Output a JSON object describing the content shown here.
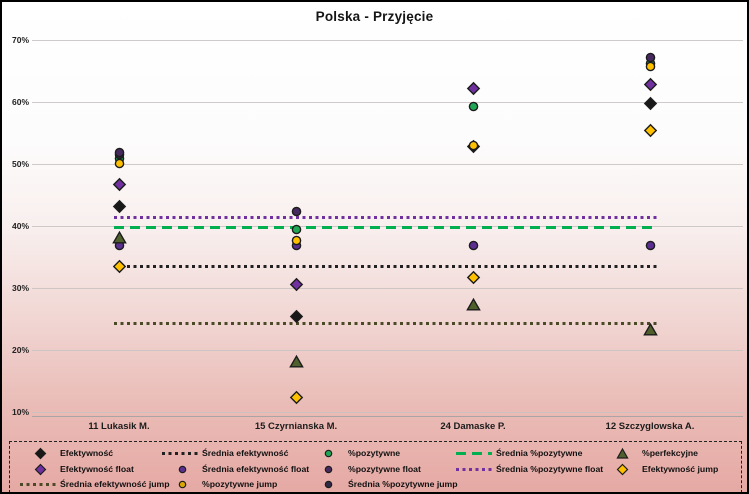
{
  "title": "Polska - Przyjęcie",
  "y_axis": {
    "ticks": [
      "70%",
      "60%",
      "50%",
      "40%",
      "30%",
      "20%",
      "10%"
    ],
    "min": 10,
    "max": 70,
    "step": 10,
    "grid": true
  },
  "categories": [
    "11 Lukasik M.",
    "15 Czyrnianska M.",
    "24 Damaske P.",
    "12 Szczyglowska A."
  ],
  "chart_data": {
    "type": "scatter",
    "title": "Polska - Przyjęcie",
    "xlabel": "",
    "ylabel": "",
    "ylim": [
      10,
      70
    ],
    "categories": [
      "11 Lukasik M.",
      "15 Czyrnianska M.",
      "24 Damaske P.",
      "12 Szczyglowska A."
    ],
    "series": [
      {
        "name": "%pozytywne",
        "marker": "circle",
        "color": "#1fa755",
        "values": [
          50.9,
          39.4,
          59.2,
          66.2
        ]
      },
      {
        "name": "Średnia %pozytywne jump",
        "marker": "circle",
        "color": "#2f2847",
        "values": [
          51.6,
          null,
          null,
          null
        ]
      },
      {
        "name": "%pozytywne float",
        "marker": "circle",
        "color": "#45295f",
        "values": [
          51.8,
          42.3,
          null,
          67.1
        ]
      },
      {
        "name": "Średnia efektywność float",
        "marker": "circle",
        "color": "#5b2f91",
        "values": [
          36.9,
          36.9,
          36.9,
          36.9
        ]
      },
      {
        "name": "Efektywność float",
        "marker": "diamond",
        "color": "#7030a0",
        "values": [
          46.7,
          30.6,
          62.1,
          62.8
        ]
      },
      {
        "name": "Efektywność",
        "marker": "diamond",
        "color": "#181818",
        "values": [
          43.1,
          25.4,
          52.8,
          59.7
        ]
      },
      {
        "name": "Efektywność jump",
        "marker": "diamond",
        "color": "#ffc000",
        "values": [
          33.5,
          12.4,
          31.7,
          55.4
        ]
      },
      {
        "name": "%pozytywne jump",
        "marker": "circle",
        "color": "#ffc000",
        "values": [
          50.1,
          37.7,
          53.0,
          65.8
        ]
      },
      {
        "name": "%perfekcyjne",
        "marker": "triangle",
        "color": "#50602c",
        "values": [
          38.1,
          18.1,
          27.3,
          23.3
        ]
      }
    ],
    "average_lines": [
      {
        "name": "Średnia %pozytywne float",
        "style": "dotted",
        "color": "#7030a0",
        "value": 41.4
      },
      {
        "name": "Średnia %pozytywne",
        "style": "dashed",
        "color": "#00b050",
        "value": 39.7
      },
      {
        "name": "Średnia efektywność",
        "style": "dotted",
        "color": "#202020",
        "value": 33.5
      },
      {
        "name": "Średnia efektywność jump",
        "style": "dotted",
        "color": "#4c4a26",
        "value": 24.3
      }
    ],
    "legend_position": "bottom"
  },
  "legend": {
    "items": [
      {
        "label": "Efektywność",
        "marker": "diamond",
        "color": "#181818",
        "col": 0,
        "row": 0
      },
      {
        "label": "Efektywność float",
        "marker": "diamond",
        "color": "#7030a0",
        "col": 0,
        "row": 1
      },
      {
        "label": "Średnia efektywność jump",
        "marker": "dotted-line",
        "color": "#4c4a26",
        "col": 0,
        "row": 2
      },
      {
        "label": "Średnia efektywność",
        "marker": "dotted-line",
        "color": "#202020",
        "col": 1,
        "row": 0
      },
      {
        "label": "Średnia efektywność float",
        "marker": "circle",
        "color": "#5b2f91",
        "col": 1,
        "row": 1
      },
      {
        "label": "%pozytywne jump",
        "marker": "circle",
        "color": "#d8a700",
        "col": 1,
        "row": 2
      },
      {
        "label": "%pozytywne",
        "marker": "circle",
        "color": "#1fa755",
        "col": 2,
        "row": 0
      },
      {
        "label": "%pozytywne float",
        "marker": "circle",
        "color": "#45295f",
        "col": 2,
        "row": 1
      },
      {
        "label": "Średnia %pozytywne jump",
        "marker": "circle",
        "color": "#2f2847",
        "col": 2,
        "row": 2
      },
      {
        "label": "Średnia %pozytywne",
        "marker": "dashed-line",
        "color": "#00b050",
        "col": 3,
        "row": 0
      },
      {
        "label": "Średnia %pozytywne float",
        "marker": "dotted-line",
        "color": "#7030a0",
        "col": 3,
        "row": 1
      },
      {
        "label": "%perfekcyjne",
        "marker": "triangle",
        "color": "#50602c",
        "col": 4,
        "row": 0
      },
      {
        "label": "Efektywność jump",
        "marker": "diamond",
        "color": "#ffc000",
        "col": 4,
        "row": 1
      }
    ]
  }
}
